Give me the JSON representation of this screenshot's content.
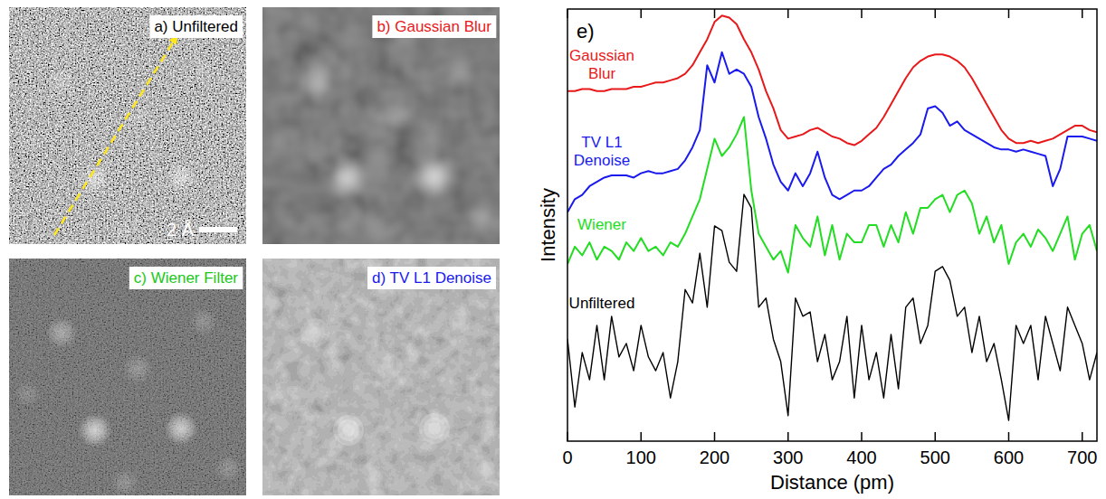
{
  "panels": [
    {
      "label": "a) Unfiltered",
      "color": "#000000"
    },
    {
      "label": "b) Gaussian Blur",
      "color": "#e8191a"
    },
    {
      "label": "c) Wiener Filter",
      "color": "#19c819"
    },
    {
      "label": "d) TV L1 Denoise",
      "color": "#1a1aee"
    }
  ],
  "scale_bar": "2 Å",
  "chart_data": {
    "type": "line",
    "label": "e)",
    "x_label": "Distance (pm)",
    "y_label": "Intensity",
    "xlim": [
      0,
      720
    ],
    "ylim": [
      0,
      100
    ],
    "xticks": [
      0,
      100,
      200,
      300,
      400,
      500,
      600,
      700
    ],
    "tick_labels": "x",
    "x": [
      0,
      10,
      20,
      30,
      40,
      50,
      60,
      70,
      80,
      90,
      100,
      110,
      120,
      130,
      140,
      150,
      160,
      170,
      180,
      190,
      200,
      210,
      220,
      230,
      240,
      250,
      260,
      270,
      280,
      290,
      300,
      310,
      320,
      330,
      340,
      350,
      360,
      370,
      380,
      390,
      400,
      410,
      420,
      430,
      440,
      450,
      460,
      470,
      480,
      490,
      500,
      510,
      520,
      530,
      540,
      550,
      560,
      570,
      580,
      590,
      600,
      610,
      620,
      630,
      640,
      650,
      660,
      670,
      680,
      690,
      700,
      710,
      720
    ],
    "series": [
      {
        "name": "Gaussian Blur",
        "color": "#e8191a",
        "values": [
          81,
          81,
          81.5,
          81.5,
          81,
          81,
          81.5,
          81.5,
          81.5,
          82,
          82,
          82.5,
          83,
          83,
          83.5,
          84,
          85,
          87,
          90,
          93,
          97,
          98.5,
          98,
          96.5,
          93,
          90,
          86,
          81,
          77,
          72,
          70,
          70.5,
          71,
          72,
          72.5,
          71.5,
          70.5,
          70,
          69,
          68.5,
          69.5,
          71,
          72.5,
          75,
          78,
          81,
          84,
          86.5,
          88,
          89,
          89.5,
          89.5,
          89,
          88,
          86.5,
          84,
          81,
          78,
          75,
          72,
          70,
          69,
          69,
          69.5,
          69,
          69.5,
          70,
          71,
          72,
          73,
          73,
          72,
          71.5
        ]
      },
      {
        "name": "TV L1 Denoise",
        "color": "#1a1aee",
        "values": [
          53,
          56,
          57,
          59,
          60,
          61,
          61.5,
          61.5,
          61.5,
          61,
          62,
          62.5,
          62,
          62,
          62.5,
          63,
          65,
          68,
          72,
          87,
          83,
          90,
          85,
          86,
          85,
          82,
          75,
          70,
          64,
          60,
          58,
          62,
          59,
          62,
          67,
          61,
          57,
          56,
          57,
          58,
          58,
          59,
          61,
          63,
          64,
          66,
          67.5,
          69,
          71,
          77,
          77.5,
          76,
          73,
          74,
          72,
          71,
          70,
          69,
          68,
          67.5,
          67.5,
          67,
          67.5,
          67,
          66.5,
          66,
          59,
          63,
          70.5,
          70.5,
          70.5,
          70,
          69.5
        ]
      },
      {
        "name": "Wiener",
        "color": "#22dd22",
        "values": [
          41,
          45,
          43,
          46,
          42,
          45,
          44,
          42,
          46,
          44,
          47,
          44,
          45,
          43,
          46,
          45,
          48,
          52,
          56,
          63,
          70,
          66,
          68,
          71,
          75,
          58,
          48,
          45,
          42,
          44,
          39,
          50,
          47,
          45,
          52,
          43,
          50,
          42,
          48,
          46,
          46,
          50,
          50,
          45,
          50,
          46,
          53,
          48,
          54,
          54,
          56,
          57,
          53,
          57,
          58,
          55,
          48,
          52,
          46,
          50,
          41,
          46,
          48,
          45,
          49,
          47,
          44,
          48,
          52,
          42,
          48,
          50,
          44
        ]
      },
      {
        "name": "Unfiltered",
        "color": "#000000",
        "values": [
          23.6,
          7.9,
          20.5,
          14.2,
          26.8,
          14.2,
          28.9,
          19.5,
          22.6,
          16.3,
          26.8,
          19.5,
          16.3,
          20.5,
          10,
          18.4,
          35.1,
          32,
          43.5,
          31,
          49.8,
          48.7,
          41.4,
          39.3,
          57.1,
          54,
          31,
          33.1,
          23.6,
          18.4,
          5.9,
          33.1,
          28.9,
          29.9,
          18.4,
          24.7,
          14.2,
          18.4,
          28.9,
          10,
          26.8,
          14.2,
          20.5,
          10,
          24.7,
          12.1,
          31,
          33.1,
          22.6,
          26.8,
          39.3,
          40.4,
          37.2,
          28.9,
          31,
          20.5,
          28.9,
          18.4,
          22.6,
          14.2,
          4.8,
          26.8,
          22.6,
          26.8,
          14.2,
          28.9,
          22.6,
          16.3,
          31,
          26.8,
          22.6,
          14.2,
          20.5
        ]
      }
    ]
  }
}
